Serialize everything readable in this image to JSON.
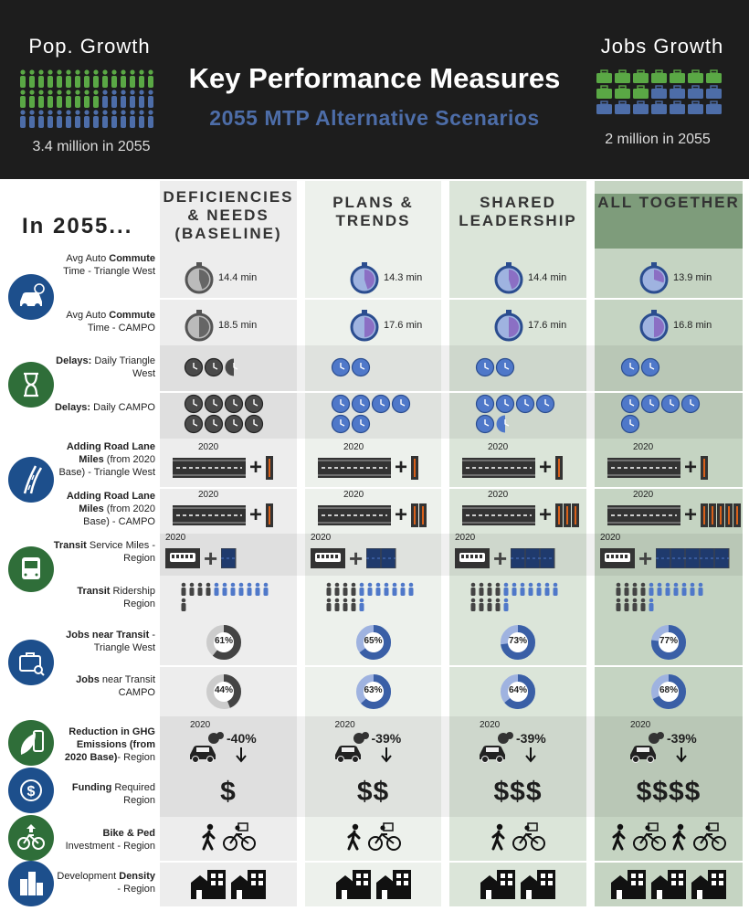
{
  "header": {
    "pop_title": "Pop. Growth",
    "pop_subtitle": "3.4 million in 2055",
    "title": "Key Performance Measures",
    "subtitle": "2055 MTP Alternative Scenarios",
    "jobs_title": "Jobs Growth",
    "jobs_subtitle": "2 million in 2055"
  },
  "columns": {
    "intro": "In 2055...",
    "headers": [
      "DEFICIENCIES & NEEDS (BASELINE)",
      "PLANS & TRENDS",
      "SHARED LEADERSHIP",
      "ALL TOGETHER"
    ]
  },
  "rows": {
    "commute_tw": {
      "pre": "Avg Auto ",
      "bold": "Commute",
      "post": " Time - Triangle West",
      "values": [
        "14.4 min",
        "14.3 min",
        "14.4 min",
        "13.9 min"
      ]
    },
    "commute_campo": {
      "pre": "Avg Auto ",
      "bold": "Commute",
      "post": " Time - CAMPO",
      "values": [
        "18.5 min",
        "17.6 min",
        "17.6 min",
        "16.8 min"
      ]
    },
    "delay_tw": {
      "bold": "Delays:",
      "post": " Daily Triangle West",
      "clock_counts": [
        2.5,
        2,
        2,
        2
      ]
    },
    "delay_campo": {
      "bold": "Delays:",
      "post": " Daily CAMPO",
      "clock_counts": [
        8,
        6,
        5.5,
        5
      ]
    },
    "lanes_tw": {
      "bold": "Adding Road Lane Miles",
      "post": " (from 2020 Base) - Triangle West",
      "year": "2020",
      "added_lanes": [
        1,
        1,
        1,
        1
      ]
    },
    "lanes_campo": {
      "bold": "Adding Road Lane Miles",
      "post": " (from 2020 Base) - CAMPO",
      "year": "2020",
      "added_lanes": [
        1,
        2,
        3,
        5
      ]
    },
    "transit_service": {
      "bold": "Transit",
      "post": " Service Miles - Region",
      "year": "2020",
      "added_blocks": [
        1,
        2,
        3,
        5
      ]
    },
    "transit_ridership": {
      "bold": "Transit",
      "post": " Ridership Region",
      "people_counts": [
        12,
        16,
        16,
        16
      ]
    },
    "jobs_tw": {
      "bold": "Jobs near Transit",
      "post": " - Triangle West",
      "percents": [
        "61%",
        "65%",
        "73%",
        "77%"
      ],
      "fractions": [
        0.61,
        0.65,
        0.73,
        0.77
      ]
    },
    "jobs_campo": {
      "bold": "Jobs",
      "post": " near Transit CAMPO",
      "percents": [
        "44%",
        "63%",
        "64%",
        "68%"
      ],
      "fractions": [
        0.44,
        0.63,
        0.64,
        0.68
      ]
    },
    "ghg": {
      "bold": "Reduction in GHG Emissions (from 2020 Base)",
      "post": "- Region",
      "year": "2020",
      "values": [
        "-40%",
        "-39%",
        "-39%",
        "-39%"
      ]
    },
    "funding": {
      "bold": "Funding",
      "post": " Required Region",
      "values": [
        "$",
        "$$",
        "$$$",
        "$$$$"
      ]
    },
    "bike_ped": {
      "bold": "Bike & Ped",
      "post": " Investment - Region",
      "walk_bike_pairs": [
        1,
        1,
        1,
        2
      ]
    },
    "density": {
      "pre": "Development ",
      "bold": "Density",
      "post": " - Region",
      "building_counts": [
        2,
        2,
        2,
        3
      ]
    }
  },
  "colors": {
    "navy": "#1d4f8c",
    "green": "#2f6e39",
    "blue_accent": "#4d6da8",
    "purple": "#8b6fc4",
    "lane_orange": "#d9601a"
  },
  "icons": [
    "car-icon",
    "hourglass-icon",
    "road-icon",
    "bus-icon",
    "briefcase-search-icon",
    "leaf-gas-icon",
    "dollar-icon",
    "bike-icon",
    "city-icon"
  ]
}
